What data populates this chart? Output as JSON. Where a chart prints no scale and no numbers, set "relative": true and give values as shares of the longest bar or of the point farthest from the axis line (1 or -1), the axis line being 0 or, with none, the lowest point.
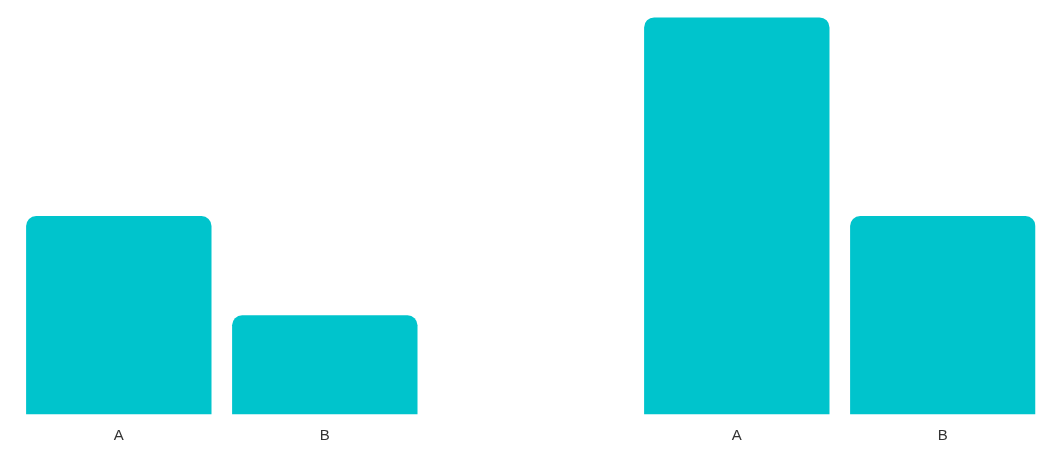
{
  "chart_data": {
    "type": "bar",
    "relative": true,
    "categories": [
      "A",
      "B",
      null,
      "A",
      "B"
    ],
    "values": [
      0.5,
      0.25,
      null,
      1,
      0.5
    ],
    "color": "#00c4cc"
  }
}
